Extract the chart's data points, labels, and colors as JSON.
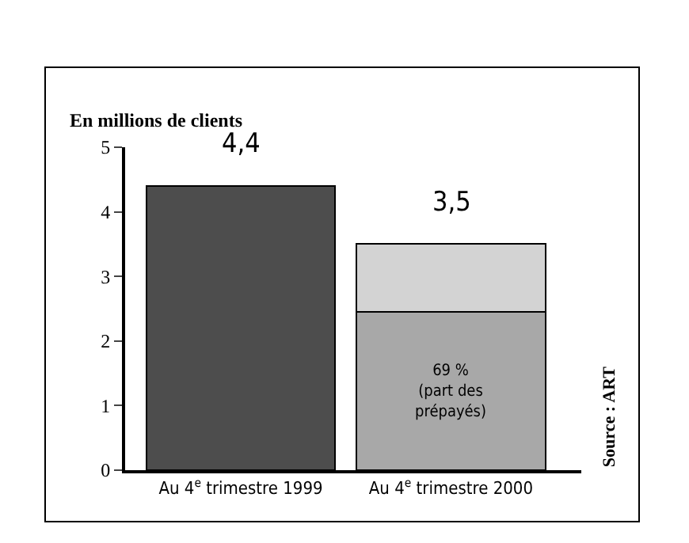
{
  "chart_data": {
    "type": "bar",
    "stacked": true,
    "ylabel": "En millions de clients",
    "categories": [
      "Au 4$^{e}$ trimestre 1999",
      "Au 4$^{e}$ trimestre 2000"
    ],
    "series": [
      {
        "colors": [
          "#4d4d4d",
          "#a8a8a8"
        ],
        "values": [
          4.4,
          2.45
        ]
      },
      {
        "color": "#d3d3d3",
        "values": [
          null,
          1.05
        ]
      }
    ],
    "totals": [
      "4,4",
      "3,5"
    ],
    "annotations": [
      "69 %\n(part des\nprépayés)",
      "Source : ART"
    ],
    "ylim": [
      0,
      5
    ],
    "yticks": [
      0,
      1,
      2,
      3,
      4,
      5
    ],
    "grid": false
  }
}
